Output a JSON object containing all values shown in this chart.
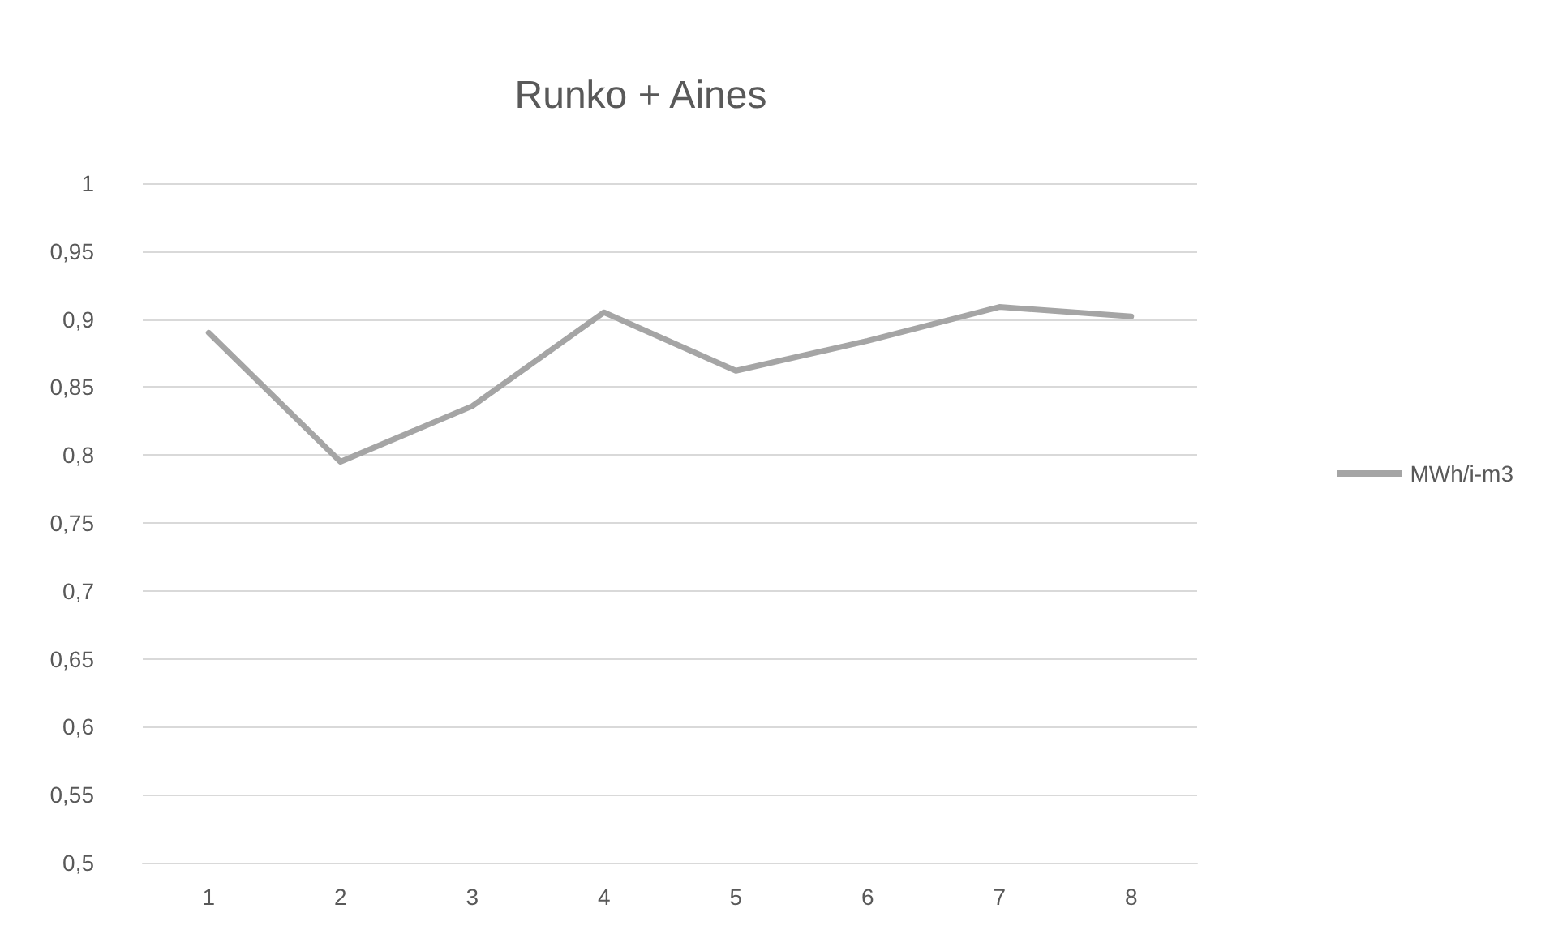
{
  "chart_data": {
    "type": "line",
    "title": "Runko + Aines",
    "categories": [
      "1",
      "2",
      "3",
      "4",
      "5",
      "6",
      "7",
      "8"
    ],
    "series": [
      {
        "name": "MWh/i-m3",
        "color": "#a5a5a5",
        "values": [
          0.89,
          0.795,
          0.836,
          0.905,
          0.862,
          0.884,
          0.909,
          0.902
        ]
      }
    ],
    "ylim": [
      0.5,
      1
    ],
    "yticks": [
      {
        "value": 0.5,
        "label": "0,5"
      },
      {
        "value": 0.55,
        "label": "0,55"
      },
      {
        "value": 0.6,
        "label": "0,6"
      },
      {
        "value": 0.65,
        "label": "0,65"
      },
      {
        "value": 0.7,
        "label": "0,7"
      },
      {
        "value": 0.75,
        "label": "0,75"
      },
      {
        "value": 0.8,
        "label": "0,8"
      },
      {
        "value": 0.85,
        "label": "0,85"
      },
      {
        "value": 0.9,
        "label": "0,9"
      },
      {
        "value": 0.95,
        "label": "0,95"
      },
      1
    ],
    "grid": "y",
    "legend": "right",
    "marker": "none",
    "line_style": "solid"
  }
}
